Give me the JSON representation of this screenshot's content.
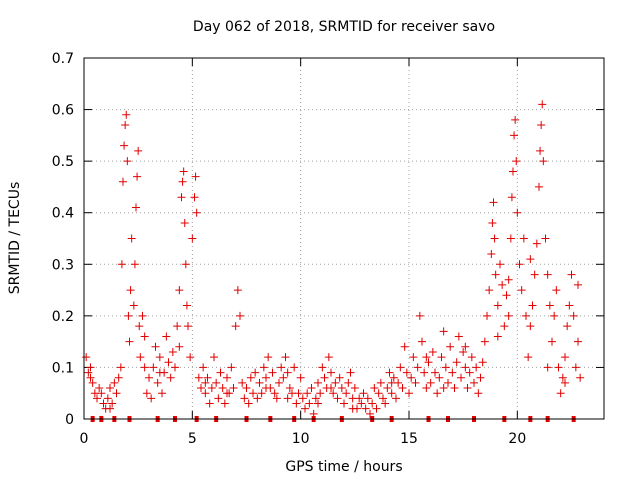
{
  "chart_data": {
    "type": "scatter",
    "title": "Day 062 of 2018, SRMTID for receiver savo",
    "xlabel": "GPS time / hours",
    "ylabel": "SRMTID / TECUs",
    "xlim": [
      0,
      24
    ],
    "ylim": [
      0,
      0.7
    ],
    "xticks": [
      0,
      5,
      10,
      15,
      20
    ],
    "xtick_labels": [
      "0",
      "5",
      "10",
      "15",
      "20"
    ],
    "yticks": [
      0,
      0.1,
      0.2,
      0.3,
      0.4,
      0.5,
      0.6,
      0.7
    ],
    "ytick_labels": [
      "0",
      "0.1",
      "0.2",
      "0.3",
      "0.4",
      "0.5",
      "0.6",
      "0.7"
    ],
    "grid": true,
    "marker": "+",
    "color": "#e00000",
    "series": [
      {
        "name": "SRMTID",
        "points": [
          [
            0.1,
            0.12
          ],
          [
            0.2,
            0.09
          ],
          [
            0.3,
            0.1
          ],
          [
            0.4,
            0.07
          ],
          [
            0.5,
            0.05
          ],
          [
            0.6,
            0.04
          ],
          [
            0.7,
            0.06
          ],
          [
            0.8,
            0.05
          ],
          [
            0.9,
            0.03
          ],
          [
            1.0,
            0.02
          ],
          [
            1.1,
            0.04
          ],
          [
            1.2,
            0.06
          ],
          [
            1.3,
            0.03
          ],
          [
            1.4,
            0.07
          ],
          [
            1.5,
            0.05
          ],
          [
            1.6,
            0.08
          ],
          [
            1.7,
            0.1
          ],
          [
            1.75,
            0.3
          ],
          [
            1.8,
            0.46
          ],
          [
            1.85,
            0.53
          ],
          [
            1.9,
            0.57
          ],
          [
            1.95,
            0.59
          ],
          [
            2.0,
            0.5
          ],
          [
            2.05,
            0.2
          ],
          [
            2.1,
            0.15
          ],
          [
            2.15,
            0.25
          ],
          [
            2.2,
            0.35
          ],
          [
            2.3,
            0.22
          ],
          [
            2.35,
            0.3
          ],
          [
            2.4,
            0.41
          ],
          [
            2.45,
            0.47
          ],
          [
            2.5,
            0.52
          ],
          [
            2.55,
            0.18
          ],
          [
            2.6,
            0.12
          ],
          [
            2.7,
            0.2
          ],
          [
            2.8,
            0.1
          ],
          [
            2.9,
            0.05
          ],
          [
            3.0,
            0.08
          ],
          [
            3.1,
            0.04
          ],
          [
            3.2,
            0.1
          ],
          [
            3.3,
            0.14
          ],
          [
            3.4,
            0.07
          ],
          [
            3.5,
            0.12
          ],
          [
            3.6,
            0.05
          ],
          [
            3.7,
            0.09
          ],
          [
            3.8,
            0.16
          ],
          [
            3.9,
            0.11
          ],
          [
            4.0,
            0.08
          ],
          [
            4.1,
            0.13
          ],
          [
            4.2,
            0.1
          ],
          [
            4.3,
            0.18
          ],
          [
            4.4,
            0.25
          ],
          [
            4.5,
            0.43
          ],
          [
            4.55,
            0.46
          ],
          [
            4.6,
            0.48
          ],
          [
            4.65,
            0.38
          ],
          [
            4.7,
            0.3
          ],
          [
            4.75,
            0.22
          ],
          [
            4.8,
            0.18
          ],
          [
            4.9,
            0.12
          ],
          [
            5.0,
            0.35
          ],
          [
            5.1,
            0.43
          ],
          [
            5.15,
            0.47
          ],
          [
            5.2,
            0.4
          ],
          [
            5.3,
            0.08
          ],
          [
            5.4,
            0.06
          ],
          [
            5.5,
            0.1
          ],
          [
            5.6,
            0.05
          ],
          [
            5.7,
            0.08
          ],
          [
            5.8,
            0.03
          ],
          [
            5.9,
            0.06
          ],
          [
            6.0,
            0.12
          ],
          [
            6.1,
            0.07
          ],
          [
            6.2,
            0.04
          ],
          [
            6.3,
            0.09
          ],
          [
            6.4,
            0.06
          ],
          [
            6.5,
            0.03
          ],
          [
            6.6,
            0.08
          ],
          [
            6.7,
            0.05
          ],
          [
            6.8,
            0.1
          ],
          [
            6.9,
            0.06
          ],
          [
            7.0,
            0.18
          ],
          [
            7.1,
            0.25
          ],
          [
            7.2,
            0.2
          ],
          [
            7.3,
            0.07
          ],
          [
            7.4,
            0.04
          ],
          [
            7.5,
            0.06
          ],
          [
            7.6,
            0.03
          ],
          [
            7.7,
            0.08
          ],
          [
            7.8,
            0.05
          ],
          [
            7.9,
            0.09
          ],
          [
            8.0,
            0.04
          ],
          [
            8.1,
            0.07
          ],
          [
            8.2,
            0.05
          ],
          [
            8.3,
            0.1
          ],
          [
            8.4,
            0.08
          ],
          [
            8.5,
            0.12
          ],
          [
            8.6,
            0.06
          ],
          [
            8.7,
            0.09
          ],
          [
            8.8,
            0.05
          ],
          [
            8.9,
            0.04
          ],
          [
            9.0,
            0.07
          ],
          [
            9.1,
            0.1
          ],
          [
            9.2,
            0.08
          ],
          [
            9.3,
            0.12
          ],
          [
            9.4,
            0.09
          ],
          [
            9.5,
            0.06
          ],
          [
            9.6,
            0.05
          ],
          [
            9.7,
            0.1
          ],
          [
            9.8,
            0.03
          ],
          [
            9.9,
            0.05
          ],
          [
            10.0,
            0.08
          ],
          [
            10.1,
            0.04
          ],
          [
            10.2,
            0.02
          ],
          [
            10.3,
            0.05
          ],
          [
            10.4,
            0.03
          ],
          [
            10.5,
            0.06
          ],
          [
            10.6,
            0.01
          ],
          [
            10.7,
            0.04
          ],
          [
            10.8,
            0.07
          ],
          [
            10.9,
            0.05
          ],
          [
            11.0,
            0.1
          ],
          [
            11.1,
            0.08
          ],
          [
            11.2,
            0.06
          ],
          [
            11.3,
            0.12
          ],
          [
            11.4,
            0.09
          ],
          [
            11.5,
            0.05
          ],
          [
            11.6,
            0.07
          ],
          [
            11.7,
            0.04
          ],
          [
            11.8,
            0.08
          ],
          [
            11.9,
            0.06
          ],
          [
            12.0,
            0.03
          ],
          [
            12.1,
            0.05
          ],
          [
            12.2,
            0.07
          ],
          [
            12.3,
            0.09
          ],
          [
            12.4,
            0.04
          ],
          [
            12.5,
            0.06
          ],
          [
            12.6,
            0.02
          ],
          [
            12.7,
            0.04
          ],
          [
            12.8,
            0.03
          ],
          [
            12.9,
            0.05
          ],
          [
            13.0,
            0.02
          ],
          [
            13.1,
            0.04
          ],
          [
            13.2,
            0.01
          ],
          [
            13.3,
            0.03
          ],
          [
            13.4,
            0.06
          ],
          [
            13.5,
            0.02
          ],
          [
            13.6,
            0.05
          ],
          [
            13.7,
            0.07
          ],
          [
            13.8,
            0.04
          ],
          [
            13.9,
            0.03
          ],
          [
            14.0,
            0.06
          ],
          [
            14.1,
            0.09
          ],
          [
            14.2,
            0.05
          ],
          [
            14.3,
            0.08
          ],
          [
            14.4,
            0.04
          ],
          [
            14.5,
            0.07
          ],
          [
            14.6,
            0.1
          ],
          [
            14.7,
            0.06
          ],
          [
            14.8,
            0.14
          ],
          [
            14.9,
            0.09
          ],
          [
            15.0,
            0.05
          ],
          [
            15.1,
            0.08
          ],
          [
            15.2,
            0.12
          ],
          [
            15.3,
            0.07
          ],
          [
            15.4,
            0.1
          ],
          [
            15.5,
            0.2
          ],
          [
            15.6,
            0.15
          ],
          [
            15.7,
            0.09
          ],
          [
            15.8,
            0.06
          ],
          [
            15.9,
            0.11
          ],
          [
            16.0,
            0.07
          ],
          [
            16.1,
            0.13
          ],
          [
            16.2,
            0.09
          ],
          [
            16.3,
            0.05
          ],
          [
            16.4,
            0.08
          ],
          [
            16.5,
            0.12
          ],
          [
            16.6,
            0.17
          ],
          [
            16.7,
            0.1
          ],
          [
            16.8,
            0.07
          ],
          [
            16.9,
            0.14
          ],
          [
            17.0,
            0.09
          ],
          [
            17.1,
            0.06
          ],
          [
            17.2,
            0.11
          ],
          [
            17.3,
            0.16
          ],
          [
            17.4,
            0.08
          ],
          [
            17.5,
            0.13
          ],
          [
            17.6,
            0.1
          ],
          [
            17.7,
            0.06
          ],
          [
            17.8,
            0.09
          ],
          [
            17.9,
            0.12
          ],
          [
            18.0,
            0.07
          ],
          [
            18.1,
            0.1
          ],
          [
            18.2,
            0.05
          ],
          [
            18.3,
            0.08
          ],
          [
            18.4,
            0.11
          ],
          [
            18.5,
            0.15
          ],
          [
            18.6,
            0.2
          ],
          [
            18.7,
            0.25
          ],
          [
            18.8,
            0.32
          ],
          [
            18.85,
            0.38
          ],
          [
            18.9,
            0.42
          ],
          [
            18.95,
            0.35
          ],
          [
            19.0,
            0.28
          ],
          [
            19.1,
            0.22
          ],
          [
            19.2,
            0.3
          ],
          [
            19.3,
            0.26
          ],
          [
            19.4,
            0.18
          ],
          [
            19.5,
            0.24
          ],
          [
            19.6,
            0.2
          ],
          [
            19.7,
            0.35
          ],
          [
            19.75,
            0.43
          ],
          [
            19.8,
            0.48
          ],
          [
            19.85,
            0.55
          ],
          [
            19.9,
            0.58
          ],
          [
            19.95,
            0.5
          ],
          [
            20.0,
            0.4
          ],
          [
            20.1,
            0.3
          ],
          [
            20.2,
            0.25
          ],
          [
            20.3,
            0.35
          ],
          [
            20.4,
            0.2
          ],
          [
            20.5,
            0.12
          ],
          [
            20.6,
            0.18
          ],
          [
            20.7,
            0.22
          ],
          [
            20.8,
            0.28
          ],
          [
            20.9,
            0.34
          ],
          [
            21.0,
            0.45
          ],
          [
            21.05,
            0.52
          ],
          [
            21.1,
            0.57
          ],
          [
            21.15,
            0.61
          ],
          [
            21.2,
            0.5
          ],
          [
            21.3,
            0.35
          ],
          [
            21.4,
            0.28
          ],
          [
            21.5,
            0.22
          ],
          [
            21.6,
            0.15
          ],
          [
            21.7,
            0.2
          ],
          [
            21.8,
            0.25
          ],
          [
            21.9,
            0.1
          ],
          [
            22.0,
            0.05
          ],
          [
            22.1,
            0.08
          ],
          [
            22.2,
            0.12
          ],
          [
            22.3,
            0.18
          ],
          [
            22.4,
            0.22
          ],
          [
            22.5,
            0.28
          ],
          [
            22.6,
            0.2
          ],
          [
            22.7,
            0.1
          ],
          [
            22.8,
            0.15
          ],
          [
            22.9,
            0.08
          ],
          [
            0.3,
            0.08
          ],
          [
            1.2,
            0.02
          ],
          [
            2.8,
            0.16
          ],
          [
            3.5,
            0.09
          ],
          [
            4.4,
            0.14
          ],
          [
            5.6,
            0.07
          ],
          [
            6.6,
            0.05
          ],
          [
            8.4,
            0.06
          ],
          [
            9.4,
            0.04
          ],
          [
            10.8,
            0.03
          ],
          [
            11.4,
            0.06
          ],
          [
            12.4,
            0.02
          ],
          [
            14.2,
            0.07
          ],
          [
            15.8,
            0.12
          ],
          [
            16.6,
            0.06
          ],
          [
            17.6,
            0.14
          ],
          [
            19.1,
            0.16
          ],
          [
            19.6,
            0.27
          ],
          [
            20.6,
            0.31
          ],
          [
            21.4,
            0.1
          ],
          [
            22.2,
            0.07
          ],
          [
            22.8,
            0.26
          ]
        ]
      }
    ],
    "zero_markers_x": [
      0.4,
      0.8,
      1.4,
      2.1,
      3.4,
      4.2,
      5.2,
      6.1,
      7.5,
      8.6,
      9.7,
      10.6,
      11.9,
      13.3,
      14.2,
      15.9,
      16.8,
      18.0,
      19.4,
      20.6,
      21.4,
      22.6
    ]
  }
}
